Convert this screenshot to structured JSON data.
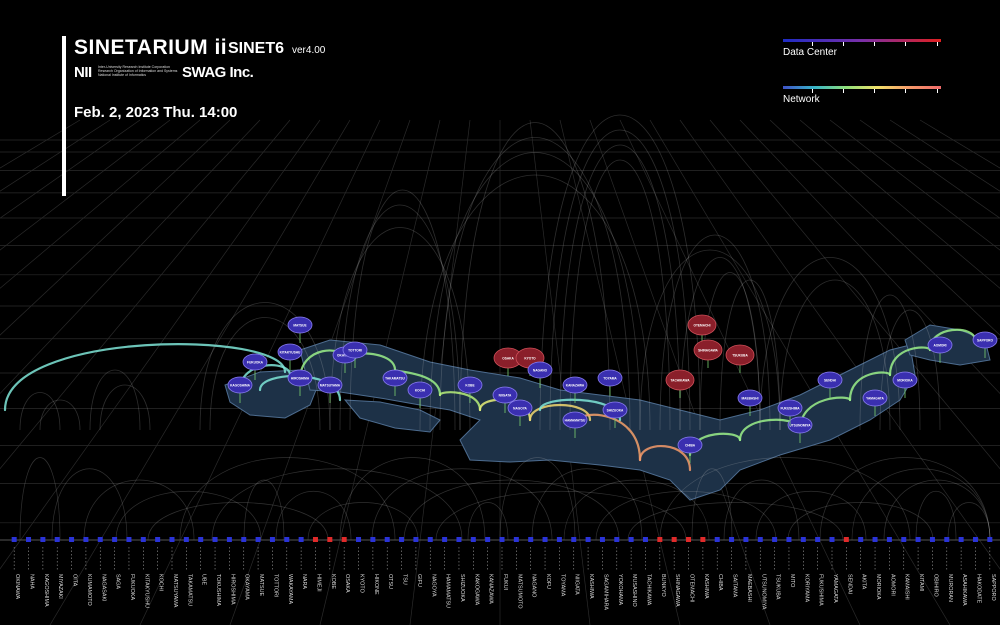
{
  "header": {
    "title": "SINETARIUM ii",
    "subtitle": "SINET6",
    "version": "ver4.00",
    "org_logo": "NII",
    "org_small_text": [
      "Inter-University Research Institute Corporation",
      "Research Organization of Information and Systems",
      "National Institute of Informatics"
    ],
    "company": "SWAG Inc.",
    "datetime": "Feb. 2, 2023 Thu.  14:00"
  },
  "legend": {
    "data_center_label": "Data Center",
    "network_label": "Network",
    "data_center_colors": [
      "#1e2cc4",
      "#7a2fa8",
      "#e01f1f"
    ],
    "network_colors": [
      "#3f52c8",
      "#38b6c8",
      "#8fe07a",
      "#f2e06a",
      "#f59a6a",
      "#f06a6a"
    ]
  },
  "chart_data": {
    "type": "network-map",
    "axis_nodes": [
      "OKINAWA",
      "NAHA",
      "KAGOSHIMA",
      "MIYAZAKI",
      "OITA",
      "KUMAMOTO",
      "NAGASAKI",
      "SAGA",
      "FUKUOKA",
      "KITAKYUSHU",
      "KOCHI",
      "MATSUYAMA",
      "TAKAMATSU",
      "UBE",
      "TOKUSHIMA",
      "HIROSHIMA",
      "OKAYAMA",
      "MATSUE",
      "TOTTORI",
      "WAKAYAMA",
      "NARA",
      "HIMEJI",
      "KOBE",
      "OSAKA",
      "KYOTO",
      "HIKONE",
      "OTSU",
      "TSU",
      "GIFU",
      "NAGOYA",
      "HAMAMATSU",
      "SHIZUOKA",
      "KAKOGAWA",
      "KANAZAWA",
      "FUKUI",
      "MATSUMOTO",
      "NAGANO",
      "KOFU",
      "TOYAMA",
      "NIIGATA",
      "KASHIWA",
      "SAGAMIHARA",
      "YOKOHAMA",
      "MUSASHINO",
      "TACHIKAWA",
      "BUNKYO",
      "SHINAGAWA",
      "OTEMACHI",
      "KASHIWA",
      "CHIBA",
      "SAITAMA",
      "MAEBASHI",
      "UTSUNOMIYA",
      "TSUKUBA",
      "MITO",
      "KORIYAMA",
      "FUKUSHIMA",
      "YAMAGATA",
      "SENDAI",
      "AKITA",
      "MORIOKA",
      "AOMORI",
      "KAMAISHI",
      "KITAMI",
      "OBIHIRO",
      "MURORAN",
      "ASAHIKAWA",
      "HAKODATE",
      "SAPPORO"
    ],
    "axis_dc_nodes": [
      21,
      22,
      23,
      45,
      46,
      47,
      48,
      58
    ],
    "map_nodes": [
      {
        "label": "KAGOSHIMA",
        "dc": false
      },
      {
        "label": "FUKUOKA",
        "dc": false
      },
      {
        "label": "KITAKYUSHU",
        "dc": false
      },
      {
        "label": "HIROSHIMA",
        "dc": false
      },
      {
        "label": "OKAYAMA",
        "dc": false
      },
      {
        "label": "MATSUE",
        "dc": false
      },
      {
        "label": "TOTTORI",
        "dc": false
      },
      {
        "label": "MATSUYAMA",
        "dc": false
      },
      {
        "label": "TAKAMATSU",
        "dc": false
      },
      {
        "label": "KOCHI",
        "dc": false
      },
      {
        "label": "OSAKA",
        "dc": true
      },
      {
        "label": "KYOTO",
        "dc": true
      },
      {
        "label": "KOBE",
        "dc": false
      },
      {
        "label": "NAGOYA",
        "dc": false
      },
      {
        "label": "KANAZAWA",
        "dc": false
      },
      {
        "label": "TOYAMA",
        "dc": false
      },
      {
        "label": "NAGANO",
        "dc": false
      },
      {
        "label": "NIIGATA",
        "dc": false
      },
      {
        "label": "SHIZUOKA",
        "dc": false
      },
      {
        "label": "HAMAMATSU",
        "dc": false
      },
      {
        "label": "OTEMACHI",
        "dc": true
      },
      {
        "label": "SHINAGAWA",
        "dc": true
      },
      {
        "label": "TSUKUBA",
        "dc": true
      },
      {
        "label": "TACHIKAWA",
        "dc": true
      },
      {
        "label": "CHIBA",
        "dc": false
      },
      {
        "label": "MAEBASHI",
        "dc": false
      },
      {
        "label": "UTSUNOMIYA",
        "dc": false
      },
      {
        "label": "FUKUSHIMA",
        "dc": false
      },
      {
        "label": "SENDAI",
        "dc": false
      },
      {
        "label": "YAMAGATA",
        "dc": false
      },
      {
        "label": "MORIOKA",
        "dc": false
      },
      {
        "label": "AOMORI",
        "dc": false
      },
      {
        "label": "SAPPORO",
        "dc": false
      }
    ]
  }
}
